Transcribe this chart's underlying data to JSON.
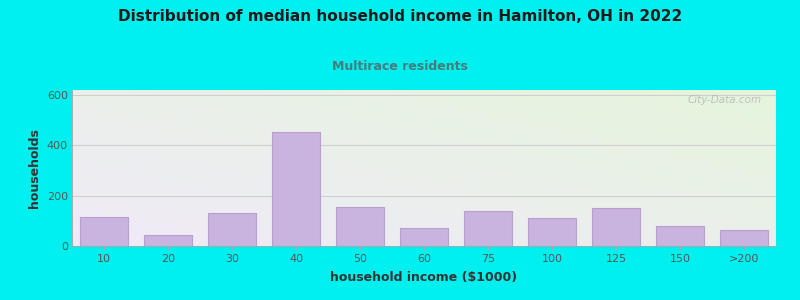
{
  "title": "Distribution of median household income in Hamilton, OH in 2022",
  "subtitle": "Multirace residents",
  "xlabel": "household income ($1000)",
  "ylabel": "households",
  "categories": [
    "10",
    "20",
    "30",
    "40",
    "50",
    "60",
    "75",
    "100",
    "125",
    "150",
    ">200"
  ],
  "values": [
    115,
    45,
    130,
    455,
    155,
    70,
    140,
    110,
    150,
    80,
    65
  ],
  "bar_color": "#c9b3df",
  "bar_edge_color": "#b89fd0",
  "bg_outer": "#00f0f0",
  "bg_plot_top_left": "#e5f5dc",
  "bg_plot_bottom_right": "#f0eaf8",
  "title_color": "#1a1a1a",
  "subtitle_color": "#4a7a7a",
  "axis_label_color": "#333333",
  "tick_color": "#555555",
  "grid_color": "#cccccc",
  "watermark": "City-Data.com",
  "ylim": [
    0,
    620
  ],
  "yticks": [
    0,
    200,
    400,
    600
  ]
}
